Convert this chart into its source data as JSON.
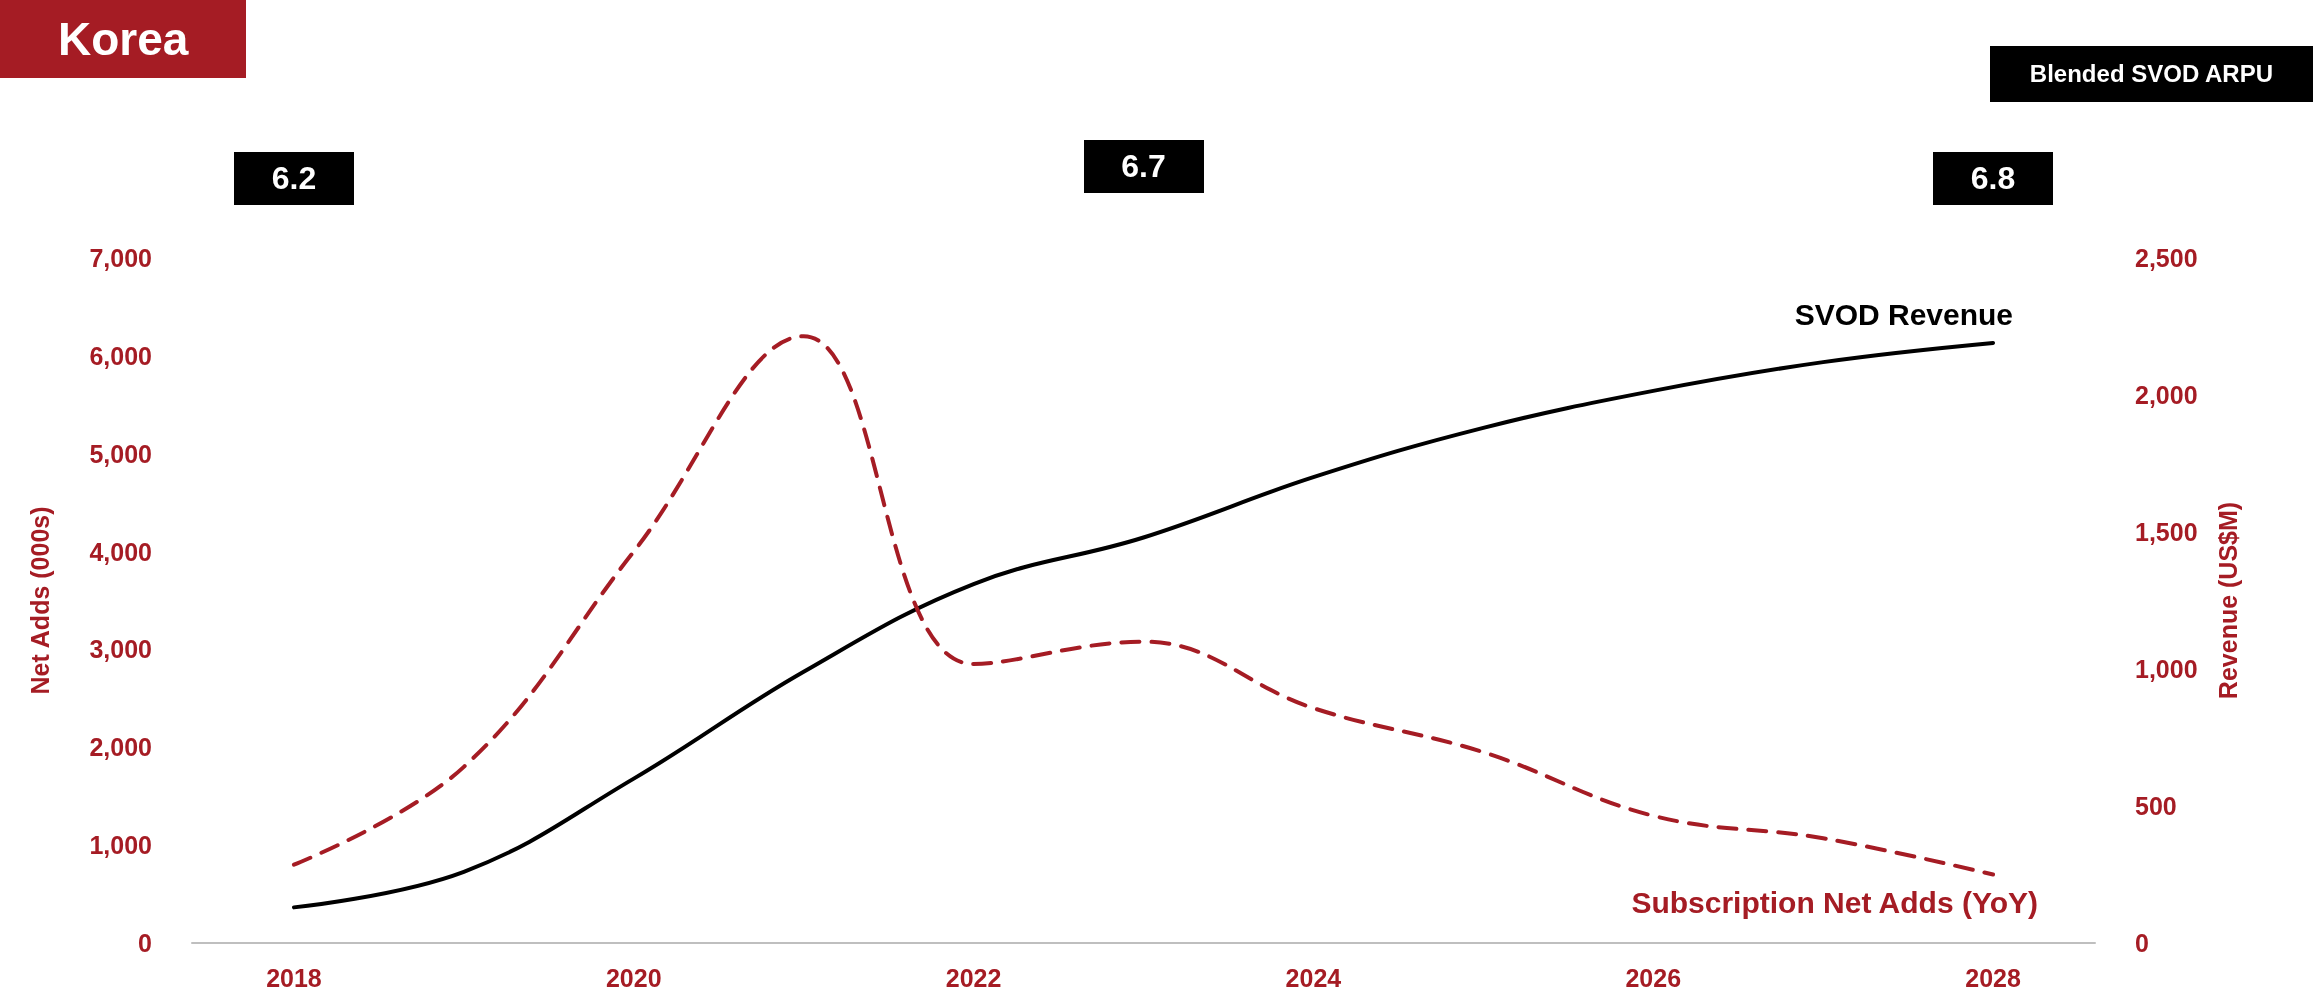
{
  "chart_data": {
    "type": "line",
    "title": "Korea",
    "ylabel": "Net Adds (000s)",
    "y2label": "Revenue (US$M)",
    "x": [
      2018,
      2019,
      2020,
      2021,
      2022,
      2023,
      2024,
      2025,
      2026,
      2027,
      2028
    ],
    "xlim": [
      2017.4,
      2028.6
    ],
    "xticks": [
      2018,
      2020,
      2022,
      2024,
      2026,
      2028
    ],
    "ylim": [
      0,
      7000
    ],
    "yticks": [
      0,
      {
        "value": 1000,
        "label": "1,000"
      },
      {
        "value": 2000,
        "label": "2,000"
      },
      {
        "value": 3000,
        "label": "3,000"
      },
      {
        "value": 4000,
        "label": "4,000"
      },
      {
        "value": 5000,
        "label": "5,000"
      },
      {
        "value": 6000,
        "label": "6,000"
      },
      {
        "value": 7000,
        "label": "7,000"
      }
    ],
    "y2lim": [
      0,
      2500
    ],
    "y2ticks": [
      0,
      500,
      {
        "value": 1000,
        "label": "1,000"
      },
      {
        "value": 1500,
        "label": "1,500"
      },
      {
        "value": 2000,
        "label": "2,000"
      },
      {
        "value": 2500,
        "label": "2,500"
      }
    ],
    "series": [
      {
        "name": "SVOD Revenue",
        "color": "#000000",
        "axis": "y2",
        "line_style": "solid",
        "values": [
          130,
          260,
          600,
          990,
          1310,
          1480,
          1700,
          1880,
          2015,
          2120,
          2190
        ]
      },
      {
        "name": "Subscription Net Adds (YoY)",
        "color": "#a51c24",
        "axis": "y",
        "line_style": "dashed",
        "values": [
          800,
          1800,
          4000,
          6200,
          2850,
          3080,
          2400,
          1950,
          1300,
          1070,
          700
        ]
      }
    ],
    "annotations": [
      "Blended SVOD ARPU",
      "6.2",
      "6.7",
      "6.8"
    ],
    "grid": false,
    "legend": false,
    "marker": "none"
  }
}
